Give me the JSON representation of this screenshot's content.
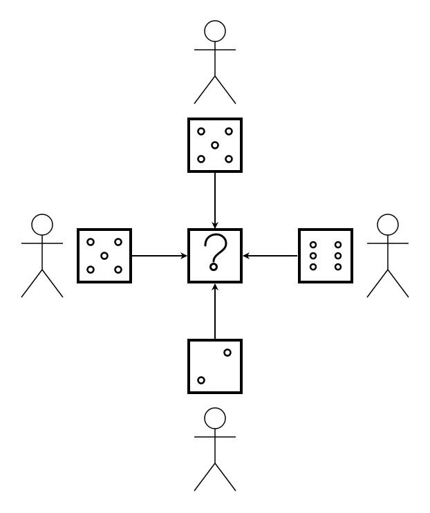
{
  "colors": {
    "stroke": "#000000",
    "background": "#ffffff"
  },
  "diagram": {
    "center": {
      "icon": "question-mark-icon",
      "dice_value": null
    },
    "players": [
      {
        "id": "top",
        "dice_value": 5
      },
      {
        "id": "left",
        "dice_value": 5
      },
      {
        "id": "right",
        "dice_value": 6
      },
      {
        "id": "bottom",
        "dice_value": 2
      }
    ]
  }
}
